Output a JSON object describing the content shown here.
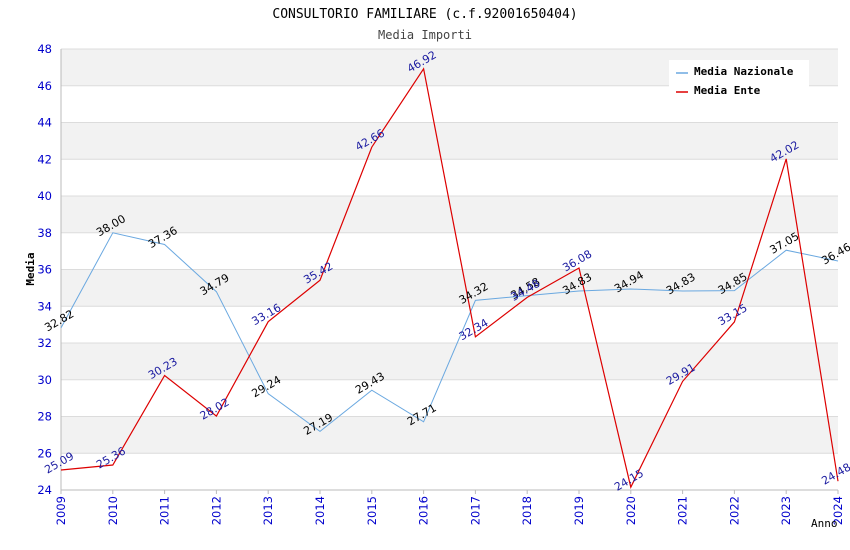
{
  "chart_data": {
    "type": "line",
    "title": "CONSULTORIO FAMILIARE (c.f.92001650404)",
    "subtitle": "Media Importi",
    "xlabel": "Anno",
    "ylabel": "Media",
    "ylim": [
      24,
      48
    ],
    "yticks": [
      24,
      26,
      28,
      30,
      32,
      34,
      36,
      38,
      40,
      42,
      44,
      46,
      48
    ],
    "ytick_labels": [
      "24",
      "26",
      "28",
      "30",
      "32",
      "34",
      "36",
      "38",
      "40",
      "42",
      "44",
      "46",
      "48"
    ],
    "categories": [
      "2009",
      "2010",
      "2011",
      "2012",
      "2013",
      "2014",
      "2015",
      "2016",
      "2017",
      "2018",
      "2019",
      "2020",
      "2021",
      "2022",
      "2023",
      "2024"
    ],
    "legend_position": "top-right",
    "grid": true,
    "series": [
      {
        "name": "Media Nazionale",
        "color": "#6aa8e0",
        "label_color": "#000000",
        "values": [
          32.82,
          38.0,
          37.36,
          34.79,
          29.24,
          27.19,
          29.43,
          27.71,
          34.32,
          34.58,
          34.83,
          34.94,
          34.83,
          34.85,
          37.05,
          36.46
        ],
        "labels": [
          "32.82",
          "38.00",
          "37.36",
          "34.79",
          "29.24",
          "27.19",
          "29.43",
          "27.71",
          "34.32",
          "34.58",
          "34.83",
          "34.94",
          "34.83",
          "34.85",
          "37.05",
          "36.46"
        ]
      },
      {
        "name": "Media Ente",
        "color": "#dd0000",
        "label_color": "#1a1aa0",
        "values": [
          25.09,
          25.36,
          30.23,
          28.02,
          33.16,
          35.42,
          42.66,
          46.92,
          32.34,
          34.48,
          36.08,
          24.15,
          29.91,
          33.15,
          42.02,
          24.48
        ],
        "labels": [
          "25.09",
          "25.36",
          "30.23",
          "28.02",
          "33.16",
          "35.42",
          "42.66",
          "46.92",
          "32.34",
          "34.48",
          "36.08",
          "24.15",
          "29.91",
          "33.15",
          "42.02",
          "24.48"
        ]
      }
    ]
  }
}
